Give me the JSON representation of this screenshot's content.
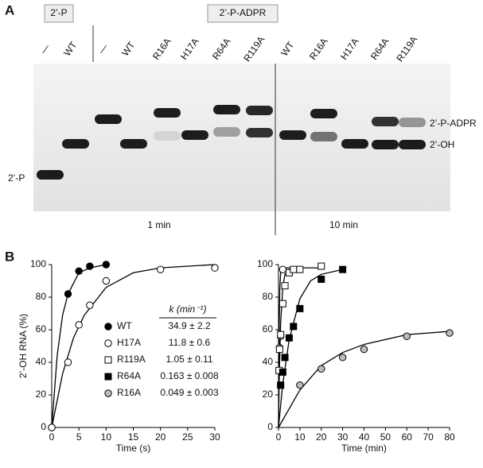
{
  "panel_a": {
    "label": "A",
    "box_labels": [
      "2’-P",
      "2’-P-ADPR"
    ],
    "lanes": [
      "—",
      "WT",
      "—",
      "WT",
      "R16A",
      "H17A",
      "R64A",
      "R119A",
      "WT",
      "R16A",
      "H17A",
      "R64A",
      "R119A"
    ],
    "band_labels": [
      "2’-P-ADPR",
      "2’-OH",
      "2’-P"
    ],
    "time_labels": [
      "1 min",
      "10 min"
    ]
  },
  "panel_b_label": "B",
  "chart_data": [
    {
      "type": "scatter",
      "x_label": "Time (s)",
      "y_label": "2’-OH RNA (%)",
      "xlim": [
        0,
        30
      ],
      "ylim": [
        0,
        100
      ],
      "xticks": [
        0,
        5,
        10,
        15,
        20,
        25,
        30
      ],
      "yticks": [
        0,
        20,
        40,
        60,
        80,
        100
      ],
      "legend_header": "k (min⁻¹)",
      "series": [
        {
          "name": "WT",
          "marker": "circle",
          "color": "#000000",
          "fill": "#000000",
          "k_label": "34.9 ± 2.2",
          "x": [
            0,
            3,
            5,
            7,
            10
          ],
          "values": [
            0,
            82,
            96,
            99,
            100
          ],
          "fit": {
            "x": [
              0,
              1,
              2,
              3,
              5,
              7,
              10
            ],
            "y": [
              0,
              44,
              69,
              82,
              95,
              98,
              100
            ]
          }
        },
        {
          "name": "H17A",
          "marker": "circle",
          "color": "#000000",
          "fill": "#ffffff",
          "k_label": "11.8 ± 0.6",
          "x": [
            0,
            3,
            5,
            7,
            10,
            20,
            30
          ],
          "values": [
            0,
            40,
            63,
            75,
            90,
            97,
            98
          ],
          "fit": {
            "x": [
              0,
              2,
              4,
              6,
              10,
              15,
              20,
              30
            ],
            "y": [
              0,
              33,
              55,
              69,
              86,
              95,
              98,
              100
            ]
          }
        },
        {
          "name": "R119A",
          "marker": "square",
          "color": "#000000",
          "fill": "#ffffff",
          "k_label": "1.05 ± 0.11",
          "x": [],
          "values": [],
          "fit": {
            "x": [],
            "y": []
          }
        },
        {
          "name": "R64A",
          "marker": "square",
          "color": "#000000",
          "fill": "#000000",
          "k_label": "0.163 ± 0.008",
          "x": [],
          "values": [],
          "fit": {
            "x": [],
            "y": []
          }
        },
        {
          "name": "R16A",
          "marker": "circle",
          "color": "#000000",
          "fill": "#bdbdbd",
          "k_label": "0.049 ± 0.003",
          "x": [],
          "values": [],
          "fit": {
            "x": [],
            "y": []
          }
        }
      ]
    },
    {
      "type": "scatter",
      "x_label": "Time (min)",
      "xlim": [
        0,
        80
      ],
      "ylim": [
        0,
        100
      ],
      "xticks": [
        0,
        10,
        20,
        30,
        40,
        50,
        60,
        70,
        80
      ],
      "yticks": [
        0,
        20,
        40,
        60,
        80,
        100
      ],
      "series": [
        {
          "marker": "circle",
          "color": "#000000",
          "fill": "#ffffff",
          "x": [
            0.5,
            1,
            2
          ],
          "values": [
            49,
            56,
            97
          ],
          "fit": {
            "x": [
              0,
              0.3,
              0.6,
              1,
              2,
              10
            ],
            "y": [
              0,
              60,
              85,
              95,
              98,
              98
            ]
          }
        },
        {
          "marker": "square",
          "color": "#000000",
          "fill": "#ffffff",
          "x": [
            0.25,
            0.5,
            1,
            2,
            3,
            5,
            7,
            10,
            20
          ],
          "values": [
            35,
            48,
            57,
            76,
            87,
            95,
            97,
            97,
            99
          ],
          "fit": {
            "x": [
              0,
              0.25,
              0.5,
              1,
              2,
              3,
              5,
              10,
              20
            ],
            "y": [
              0,
              23,
              40,
              64,
              86,
              94,
              97,
              98,
              98
            ]
          }
        },
        {
          "marker": "square",
          "color": "#000000",
          "fill": "#000000",
          "x": [
            1,
            2,
            3,
            5,
            7,
            10,
            20,
            30
          ],
          "values": [
            26,
            34,
            43,
            55,
            62,
            73,
            91,
            97
          ],
          "fit": {
            "x": [
              0,
              2,
              5,
              10,
              15,
              20,
              30
            ],
            "y": [
              0,
              27,
              54,
              79,
              90,
              94,
              97
            ]
          }
        },
        {
          "marker": "circle",
          "color": "#000000",
          "fill": "#bdbdbd",
          "x": [
            10,
            20,
            30,
            40,
            60,
            80
          ],
          "values": [
            26,
            36,
            43,
            48,
            56,
            58
          ],
          "fit": {
            "x": [
              0,
              10,
              20,
              30,
              40,
              60,
              80
            ],
            "y": [
              0,
              23,
              38,
              46,
              51,
              57,
              59
            ]
          }
        }
      ]
    }
  ]
}
